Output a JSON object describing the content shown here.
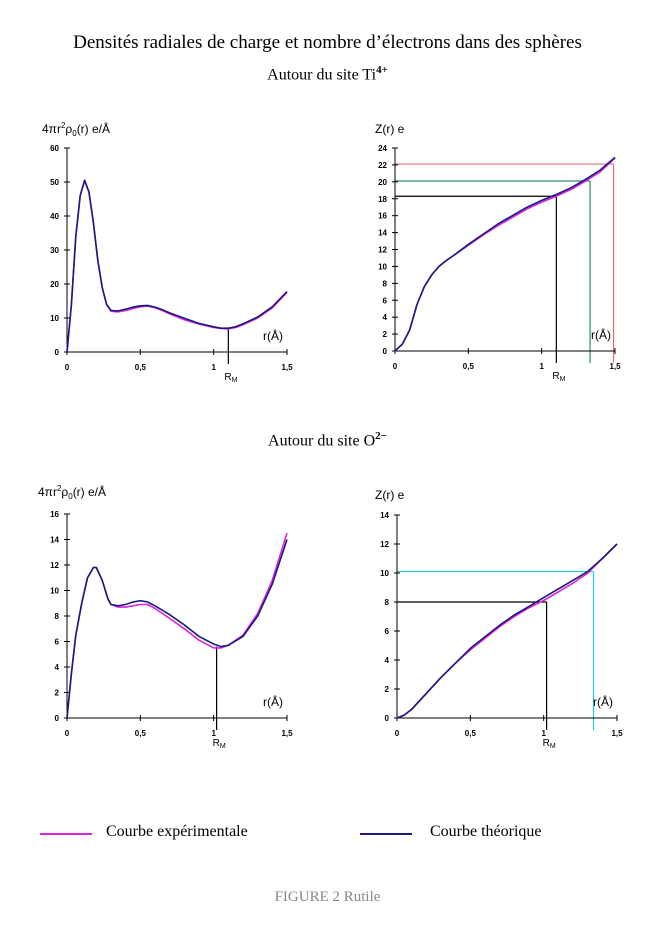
{
  "title": "Densités radiales de charge et nombre d’électrons dans des sphères",
  "sections": {
    "ti": {
      "label": "Autour du site Ti",
      "sup": "4+"
    },
    "o": {
      "label": "Autour du site O",
      "sup": "2−"
    }
  },
  "legend": {
    "experimental": "Courbe expérimentale",
    "theoretical": "Courbe théorique"
  },
  "caption": "FIGURE 2  Rutile",
  "colors": {
    "experimental": "#dd22dd",
    "theoretical": "#1a1a80",
    "red_guide": "#e07070",
    "green_guide": "#2a8a6a",
    "cyan_guide": "#20d0e0",
    "black_guide": "#000000"
  },
  "chart_data": [
    {
      "id": "ti-density",
      "type": "line",
      "ylabel_parts": [
        "4πr",
        "2",
        "ρ",
        "0",
        "(r) e/Å"
      ],
      "xlabel": "r(Å)",
      "marker_label": "R",
      "marker_sub": "M",
      "xlim": [
        0,
        1.5
      ],
      "ylim": [
        0,
        60
      ],
      "xticks": [
        0,
        0.5,
        1,
        1.5
      ],
      "xtick_labels": [
        "0",
        "0,5",
        "1",
        "1,5"
      ],
      "yticks": [
        0,
        10,
        20,
        30,
        40,
        50,
        60
      ],
      "ytick_labels": [
        "0",
        "10",
        "20",
        "30",
        "40",
        "50",
        "60"
      ],
      "marker_x": 1.1,
      "marker_y": 6.8,
      "guides": [],
      "series": [
        {
          "name": "Courbe expérimentale",
          "color_key": "experimental",
          "x": [
            0,
            0.03,
            0.06,
            0.09,
            0.12,
            0.15,
            0.18,
            0.21,
            0.24,
            0.27,
            0.3,
            0.35,
            0.4,
            0.45,
            0.5,
            0.55,
            0.6,
            0.65,
            0.7,
            0.8,
            0.9,
            1.0,
            1.05,
            1.1,
            1.15,
            1.2,
            1.3,
            1.4,
            1.5
          ],
          "y": [
            0,
            14,
            34,
            46,
            50.5,
            47,
            38,
            27,
            19,
            14,
            12,
            11.8,
            12.2,
            12.8,
            13.3,
            13.5,
            13,
            12.2,
            11.2,
            9.5,
            8.2,
            7.2,
            6.9,
            6.8,
            7.2,
            8,
            10,
            13,
            17.5
          ]
        },
        {
          "name": "Courbe théorique",
          "color_key": "theoretical",
          "x": [
            0,
            0.03,
            0.06,
            0.09,
            0.12,
            0.15,
            0.18,
            0.21,
            0.24,
            0.27,
            0.3,
            0.35,
            0.4,
            0.45,
            0.5,
            0.55,
            0.6,
            0.65,
            0.7,
            0.8,
            0.9,
            1.0,
            1.05,
            1.1,
            1.15,
            1.2,
            1.3,
            1.4,
            1.5
          ],
          "y": [
            0,
            14,
            34,
            46,
            50.5,
            47,
            38,
            27,
            19,
            14,
            12.2,
            12.1,
            12.6,
            13.2,
            13.6,
            13.7,
            13.2,
            12.4,
            11.5,
            9.9,
            8.4,
            7.4,
            7,
            7,
            7.4,
            8.3,
            10.3,
            13.3,
            17.8
          ]
        }
      ]
    },
    {
      "id": "ti-electrons",
      "type": "line",
      "ylabel_parts": [
        "Z(r) e"
      ],
      "xlabel": "r(Å)",
      "marker_label": "R",
      "marker_sub": "M",
      "xlim": [
        0,
        1.5
      ],
      "ylim": [
        0,
        24
      ],
      "xticks": [
        0,
        0.5,
        1,
        1.5
      ],
      "xtick_labels": [
        "0",
        "0,5",
        "1",
        "1,5"
      ],
      "yticks": [
        0,
        2,
        4,
        6,
        8,
        10,
        12,
        14,
        16,
        18,
        20,
        22,
        24
      ],
      "ytick_labels": [
        "0",
        "2",
        "4",
        "6",
        "8",
        "10",
        "12",
        "14",
        "16",
        "18",
        "20",
        "22",
        "24"
      ],
      "marker_x": 1.1,
      "marker_y": 18.3,
      "guides": [
        {
          "x": 1.1,
          "y": 18.3,
          "color_key": "black_guide"
        },
        {
          "x": 1.33,
          "y": 20.1,
          "color_key": "green_guide"
        },
        {
          "x": 1.49,
          "y": 22.1,
          "color_key": "red_guide"
        }
      ],
      "series": [
        {
          "name": "Courbe expérimentale",
          "color_key": "experimental",
          "x": [
            0,
            0.05,
            0.1,
            0.15,
            0.2,
            0.25,
            0.3,
            0.35,
            0.4,
            0.5,
            0.6,
            0.7,
            0.8,
            0.9,
            1.0,
            1.1,
            1.2,
            1.3,
            1.4,
            1.5
          ],
          "y": [
            0,
            0.8,
            2.5,
            5.5,
            7.6,
            9,
            10,
            10.7,
            11.3,
            12.5,
            13.7,
            14.8,
            15.8,
            16.8,
            17.6,
            18.3,
            19.1,
            20.1,
            21.2,
            22.8
          ]
        },
        {
          "name": "Courbe théorique",
          "color_key": "theoretical",
          "x": [
            0,
            0.05,
            0.1,
            0.15,
            0.2,
            0.25,
            0.3,
            0.35,
            0.4,
            0.5,
            0.6,
            0.7,
            0.8,
            0.9,
            1.0,
            1.1,
            1.2,
            1.3,
            1.4,
            1.5
          ],
          "y": [
            0,
            0.8,
            2.5,
            5.5,
            7.6,
            9,
            10,
            10.7,
            11.3,
            12.6,
            13.8,
            15,
            16,
            17,
            17.8,
            18.5,
            19.3,
            20.3,
            21.4,
            22.9
          ]
        }
      ]
    },
    {
      "id": "o-density",
      "type": "line",
      "ylabel_parts": [
        "4πr",
        "2",
        "ρ",
        "0",
        "(r) e/Å"
      ],
      "xlabel": "r(Å)",
      "marker_label": "R",
      "marker_sub": "M",
      "xlim": [
        0,
        1.5
      ],
      "ylim": [
        0,
        16
      ],
      "xticks": [
        0,
        0.5,
        1,
        1.5
      ],
      "xtick_labels": [
        "0",
        "0,5",
        "1",
        "1,5"
      ],
      "yticks": [
        0,
        2,
        4,
        6,
        8,
        10,
        12,
        14,
        16
      ],
      "ytick_labels": [
        "0",
        "2",
        "4",
        "6",
        "8",
        "10",
        "12",
        "14",
        "16"
      ],
      "marker_x": 1.02,
      "marker_y": 5.6,
      "guides": [],
      "series": [
        {
          "name": "Courbe expérimentale",
          "color_key": "experimental",
          "x": [
            0,
            0.03,
            0.06,
            0.1,
            0.14,
            0.18,
            0.2,
            0.24,
            0.28,
            0.3,
            0.35,
            0.4,
            0.45,
            0.5,
            0.55,
            0.6,
            0.7,
            0.8,
            0.9,
            1.0,
            1.05,
            1.1,
            1.2,
            1.3,
            1.4,
            1.5
          ],
          "y": [
            0,
            3.5,
            6.5,
            9,
            11,
            11.8,
            11.8,
            10.8,
            9.3,
            8.9,
            8.7,
            8.7,
            8.8,
            8.9,
            8.9,
            8.6,
            7.8,
            7,
            6.1,
            5.5,
            5.5,
            5.7,
            6.5,
            8.2,
            10.8,
            14.5
          ]
        },
        {
          "name": "Courbe théorique",
          "color_key": "theoretical",
          "x": [
            0,
            0.03,
            0.06,
            0.1,
            0.14,
            0.18,
            0.2,
            0.24,
            0.28,
            0.3,
            0.35,
            0.4,
            0.45,
            0.5,
            0.55,
            0.6,
            0.7,
            0.8,
            0.9,
            1.0,
            1.05,
            1.1,
            1.2,
            1.3,
            1.4,
            1.5
          ],
          "y": [
            0,
            3.5,
            6.5,
            9,
            11,
            11.8,
            11.8,
            10.8,
            9.3,
            8.9,
            8.8,
            8.9,
            9.1,
            9.2,
            9.1,
            8.8,
            8.1,
            7.3,
            6.4,
            5.8,
            5.6,
            5.7,
            6.4,
            8,
            10.5,
            14
          ]
        }
      ]
    },
    {
      "id": "o-electrons",
      "type": "line",
      "ylabel_parts": [
        "Z(r) e"
      ],
      "xlabel": "r(Å)",
      "marker_label": "R",
      "marker_sub": "M",
      "xlim": [
        0,
        1.5
      ],
      "ylim": [
        0,
        14
      ],
      "xticks": [
        0,
        0.5,
        1,
        1.5
      ],
      "xtick_labels": [
        "0",
        "0,5",
        "1",
        "1,5"
      ],
      "yticks": [
        0,
        2,
        4,
        6,
        8,
        10,
        12,
        14
      ],
      "ytick_labels": [
        "0",
        "2",
        "4",
        "6",
        "8",
        "10",
        "12",
        "14"
      ],
      "marker_x": 1.02,
      "marker_y": 8.0,
      "guides": [
        {
          "x": 1.02,
          "y": 8.0,
          "color_key": "black_guide"
        },
        {
          "x": 1.34,
          "y": 10.1,
          "color_key": "cyan_guide"
        }
      ],
      "series": [
        {
          "name": "Courbe expérimentale",
          "color_key": "experimental",
          "x": [
            0,
            0.05,
            0.1,
            0.2,
            0.3,
            0.4,
            0.5,
            0.6,
            0.7,
            0.8,
            0.9,
            1.0,
            1.1,
            1.2,
            1.3,
            1.4,
            1.5
          ],
          "y": [
            0,
            0.2,
            0.6,
            1.7,
            2.8,
            3.8,
            4.7,
            5.5,
            6.3,
            7,
            7.6,
            8.1,
            8.7,
            9.3,
            10,
            11,
            12
          ]
        },
        {
          "name": "Courbe théorique",
          "color_key": "theoretical",
          "x": [
            0,
            0.05,
            0.1,
            0.2,
            0.3,
            0.4,
            0.5,
            0.6,
            0.7,
            0.8,
            0.9,
            1.0,
            1.1,
            1.2,
            1.3,
            1.4,
            1.5
          ],
          "y": [
            0,
            0.2,
            0.6,
            1.7,
            2.8,
            3.8,
            4.8,
            5.6,
            6.4,
            7.1,
            7.7,
            8.3,
            8.9,
            9.5,
            10.1,
            11,
            12
          ]
        }
      ]
    }
  ]
}
